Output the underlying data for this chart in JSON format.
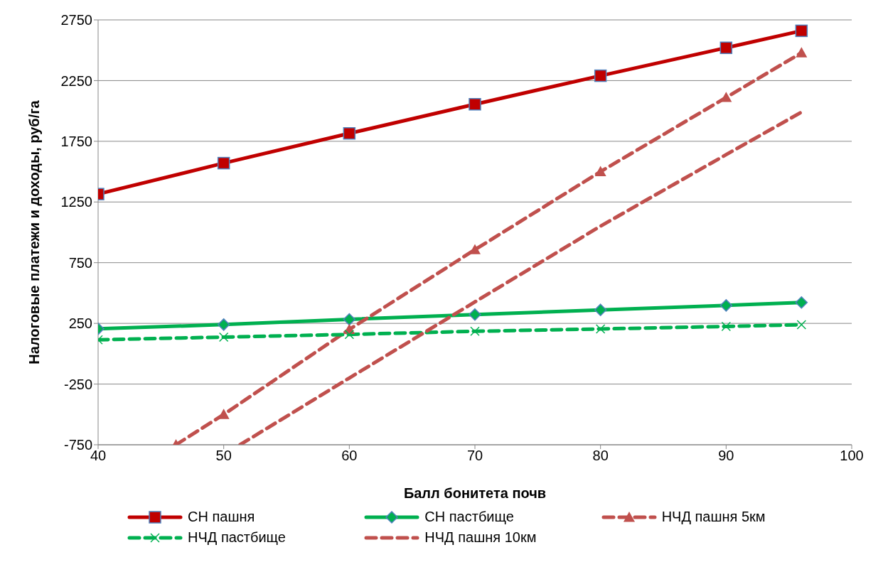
{
  "chart_data": {
    "type": "line",
    "xlabel": "Балл бонитета почв",
    "ylabel": "Налоговые платежи и доходы, руб/га",
    "xlim": [
      40,
      100
    ],
    "xticks": [
      40,
      50,
      60,
      70,
      80,
      90,
      100
    ],
    "ylim": [
      -750,
      2750
    ],
    "yticks": [
      -750,
      -250,
      250,
      750,
      1250,
      1750,
      2250,
      2750
    ],
    "grid": "y",
    "legend": "bottom",
    "series": [
      {
        "name": "СН пашня",
        "color": "#c00000",
        "marker": "square",
        "line_style": "solid",
        "x": [
          40,
          50,
          60,
          70,
          80,
          90,
          96
        ],
        "values": [
          1315,
          1570,
          1815,
          2055,
          2290,
          2520,
          2660
        ]
      },
      {
        "name": "СН пастбище",
        "color": "#00b050",
        "marker": "diamond",
        "line_style": "solid",
        "x": [
          40,
          50,
          60,
          70,
          80,
          90,
          96
        ],
        "values": [
          205,
          240,
          283,
          323,
          361,
          398,
          422
        ]
      },
      {
        "name": "НЧД пашня 5км",
        "color": "#c0504d",
        "marker": "triangle",
        "line_style": "dashed",
        "x": [
          46.2,
          50,
          60,
          70,
          80,
          90,
          96
        ],
        "values": [
          -750,
          -500,
          200,
          857,
          1500,
          2111,
          2479
        ]
      },
      {
        "name": "НЧД пастбище",
        "color": "#00b050",
        "marker": "cross",
        "line_style": "dashed",
        "x": [
          40,
          50,
          60,
          70,
          80,
          90,
          96
        ],
        "values": [
          115,
          137,
          159,
          185,
          204,
          225,
          239
        ]
      },
      {
        "name": "НЧД пашня 10км",
        "color": "#c0504d",
        "marker": "none",
        "line_style": "dashed",
        "x": [
          51.3,
          60,
          70,
          80,
          90,
          96
        ],
        "values": [
          -750,
          -200,
          427,
          1051,
          1640,
          1990
        ]
      }
    ]
  }
}
